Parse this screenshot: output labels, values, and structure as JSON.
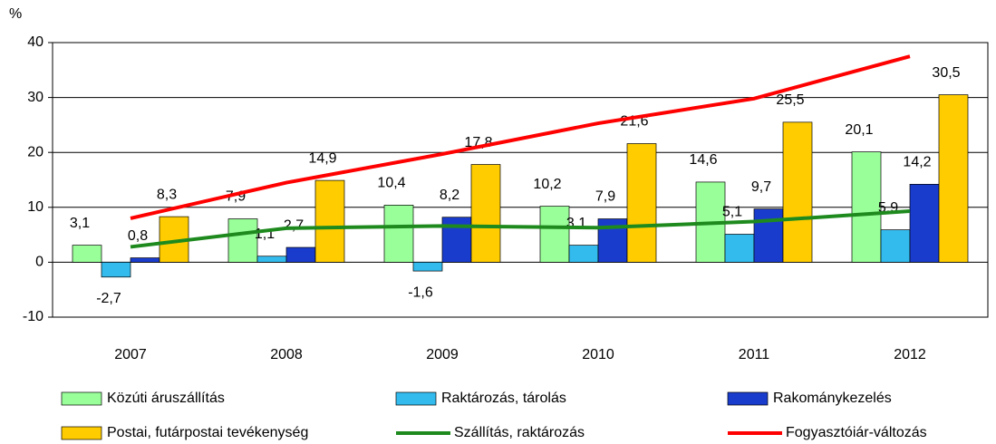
{
  "chart_data": {
    "type": "bar",
    "y_label": "%",
    "categories": [
      "2007",
      "2008",
      "2009",
      "2010",
      "2011",
      "2012"
    ],
    "series": [
      {
        "name": "Közúti áruszállítás",
        "type": "bar",
        "color": "#99ff99",
        "values": [
          3.1,
          7.9,
          10.4,
          10.2,
          14.6,
          20.1
        ],
        "value_labels": [
          "3,1",
          "7,9",
          "10,4",
          "10,2",
          "14,6",
          "20,1"
        ]
      },
      {
        "name": "Raktározás, tárolás",
        "type": "bar",
        "color": "#33bbee",
        "values": [
          -2.7,
          1.1,
          -1.6,
          3.1,
          5.1,
          5.9
        ],
        "value_labels": [
          "-2,7",
          "1,1",
          "-1,6",
          "3,1",
          "5,1",
          "5,9"
        ]
      },
      {
        "name": "Rakománykezelés",
        "type": "bar",
        "color": "#1a3ccc",
        "values": [
          0.8,
          2.7,
          8.2,
          7.9,
          9.7,
          14.2
        ],
        "value_labels": [
          "0,8",
          "2,7",
          "8,2",
          "7,9",
          "9,7",
          "14,2"
        ]
      },
      {
        "name": "Postai, futárpostai tevékenység",
        "type": "bar",
        "color": "#ffcc00",
        "values": [
          8.3,
          14.9,
          17.8,
          21.6,
          25.5,
          30.5
        ],
        "value_labels": [
          "8,3",
          "14,9",
          "17,8",
          "21,6",
          "25,5",
          "30,5"
        ]
      },
      {
        "name": "Szállítás, raktározás",
        "type": "line",
        "color": "#1e8a1e",
        "values": [
          2.8,
          6.2,
          6.6,
          6.3,
          7.4,
          9.3
        ]
      },
      {
        "name": "Fogyasztóiár-változás",
        "type": "line",
        "color": "#ff0000",
        "values": [
          8.0,
          14.5,
          19.7,
          25.3,
          29.8,
          37.5
        ]
      }
    ],
    "ylim": [
      -10,
      40
    ],
    "yticks": [
      -10,
      0,
      10,
      20,
      30,
      40
    ],
    "grid": true,
    "legend_position": "bottom"
  }
}
